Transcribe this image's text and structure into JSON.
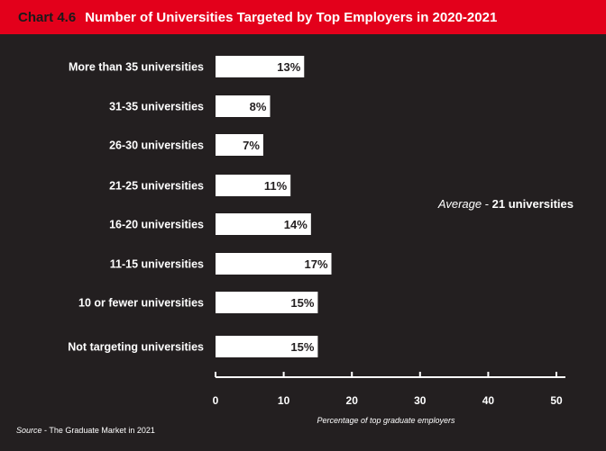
{
  "header": {
    "chart_number": "Chart 4.6",
    "title": "Number of Universities Targeted by Top Employers in 2020-2021"
  },
  "annotation": {
    "prefix": "Average",
    "separator": " - ",
    "value": "21 universities"
  },
  "source": {
    "prefix": "Source",
    "text": " - The Graduate Market in 2021"
  },
  "colors": {
    "background": "#231f20",
    "header": "#e3001b",
    "bar": "#ffffff",
    "text": "#ffffff"
  },
  "chart_data": {
    "type": "bar",
    "orientation": "horizontal",
    "title": "Number of Universities Targeted by Top Employers in 2020-2021",
    "xlabel": "Percentage of top graduate employers",
    "ylabel": "",
    "categories": [
      "More than 35 universities",
      "31-35 universities",
      "26-30 universities",
      "21-25 universities",
      "16-20 universities",
      "11-15 universities",
      "10 or fewer universities",
      "Not targeting universities"
    ],
    "values": [
      13,
      8,
      7,
      11,
      14,
      17,
      15,
      15
    ],
    "value_labels": [
      "13%",
      "8%",
      "7%",
      "11%",
      "14%",
      "17%",
      "15%",
      "15%"
    ],
    "xlim": [
      0,
      50
    ],
    "xticks": [
      0,
      10,
      20,
      30,
      40,
      50
    ],
    "grid": false,
    "legend": "none"
  }
}
